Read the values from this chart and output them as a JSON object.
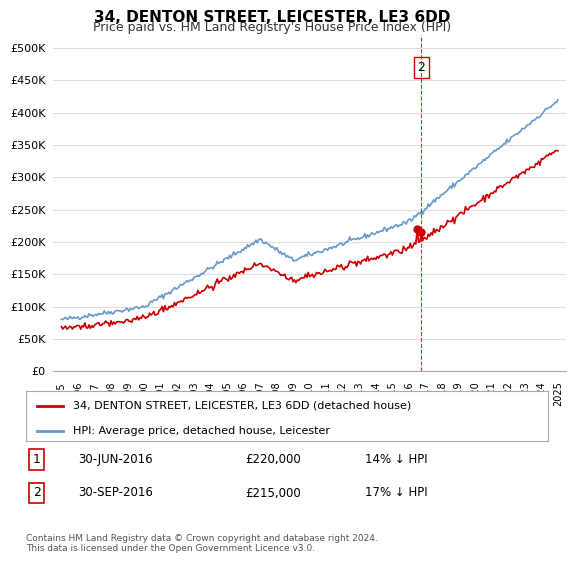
{
  "title": "34, DENTON STREET, LEICESTER, LE3 6DD",
  "subtitle": "Price paid vs. HM Land Registry's House Price Index (HPI)",
  "ylabel_ticks": [
    "£0",
    "£50K",
    "£100K",
    "£150K",
    "£200K",
    "£250K",
    "£300K",
    "£350K",
    "£400K",
    "£450K",
    "£500K"
  ],
  "ytick_values": [
    0,
    50000,
    100000,
    150000,
    200000,
    250000,
    300000,
    350000,
    400000,
    450000,
    500000
  ],
  "ylim": [
    0,
    520000
  ],
  "legend_property": "34, DENTON STREET, LEICESTER, LE3 6DD (detached house)",
  "legend_hpi": "HPI: Average price, detached house, Leicester",
  "property_color": "#cc0000",
  "hpi_color": "#6699cc",
  "annotation1_label": "1",
  "annotation1_date": "30-JUN-2016",
  "annotation1_price": "£220,000",
  "annotation1_hpi": "14% ↓ HPI",
  "annotation2_label": "2",
  "annotation2_date": "30-SEP-2016",
  "annotation2_price": "£215,000",
  "annotation2_hpi": "17% ↓ HPI",
  "footer": "Contains HM Land Registry data © Crown copyright and database right 2024.\nThis data is licensed under the Open Government Licence v3.0.",
  "background_color": "#ffffff",
  "plot_bg_color": "#ffffff",
  "grid_color": "#dddddd"
}
